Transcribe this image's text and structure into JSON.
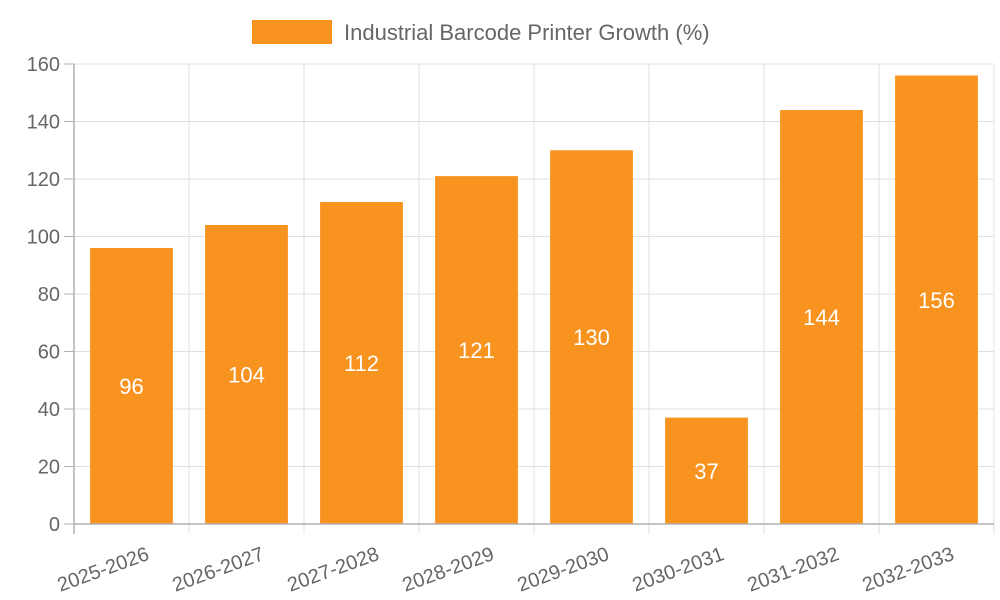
{
  "chart_data": {
    "type": "bar",
    "title": "",
    "legend": [
      {
        "label": "Industrial Barcode Printer Growth (%)",
        "color": "#f7931e"
      }
    ],
    "legend_position": "top",
    "categories": [
      "2025-2026",
      "2026-2027",
      "2027-2028",
      "2028-2029",
      "2029-2030",
      "2030-2031",
      "2031-2032",
      "2032-2033"
    ],
    "series": [
      {
        "name": "Industrial Barcode Printer Growth (%)",
        "values": [
          96,
          104,
          112,
          121,
          130,
          37,
          144,
          156
        ],
        "color": "#f7931e"
      }
    ],
    "xlabel": "",
    "ylabel": "",
    "ylim": [
      0,
      160
    ],
    "yticks": [
      0,
      20,
      40,
      60,
      80,
      100,
      120,
      140,
      160
    ],
    "grid": true,
    "data_labels": true
  },
  "colors": {
    "bar": "#f7931e",
    "grid": "#e0e0e0",
    "axis": "#b0b0b0",
    "text": "#666666",
    "label": "#ffffff"
  }
}
